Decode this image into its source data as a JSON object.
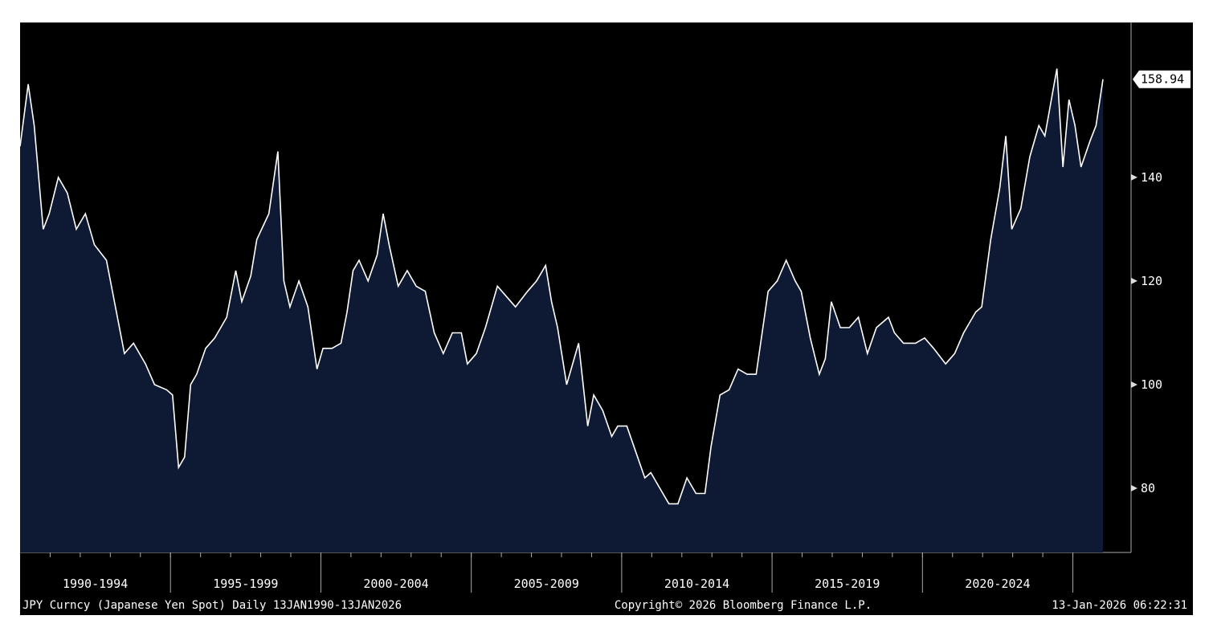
{
  "chart_data": {
    "type": "area",
    "subtitle": "JPY Curncy (Japanese Yen Spot) Daily 13JAN1990-13JAN2026",
    "copyright": "Copyright© 2026 Bloomberg Finance L.P.",
    "timestamp": "13-Jan-2026 06:22:31",
    "period_labels": [
      "1990-1994",
      "1995-1999",
      "2000-2004",
      "2005-2009",
      "2010-2014",
      "2015-2019",
      "2020-2024"
    ],
    "last_value_label": "158.94",
    "line_color": "#ffffff",
    "fill_color": "#0e1a33",
    "xlim": [
      1990.03,
      2026.03
    ],
    "ylim": [
      67.6,
      169.9
    ],
    "yticks": [
      80,
      100,
      120,
      140
    ],
    "x": [
      1990.03,
      1990.3,
      1990.5,
      1990.8,
      1991.0,
      1991.3,
      1991.6,
      1991.9,
      1992.2,
      1992.5,
      1992.9,
      1993.2,
      1993.5,
      1993.8,
      1994.2,
      1994.5,
      1994.9,
      1995.1,
      1995.3,
      1995.5,
      1995.7,
      1995.9,
      1996.2,
      1996.5,
      1996.9,
      1997.2,
      1997.4,
      1997.7,
      1997.9,
      1998.3,
      1998.6,
      1998.8,
      1999.0,
      1999.3,
      1999.6,
      1999.9,
      2000.1,
      2000.4,
      2000.7,
      2000.9,
      2001.1,
      2001.3,
      2001.6,
      2001.9,
      2002.1,
      2002.3,
      2002.6,
      2002.9,
      2003.2,
      2003.5,
      2003.8,
      2004.1,
      2004.4,
      2004.7,
      2004.9,
      2005.2,
      2005.5,
      2005.9,
      2006.2,
      2006.5,
      2006.9,
      2007.2,
      2007.5,
      2007.7,
      2007.9,
      2008.2,
      2008.6,
      2008.9,
      2009.1,
      2009.4,
      2009.7,
      2009.9,
      2010.2,
      2010.5,
      2010.8,
      2011.0,
      2011.3,
      2011.6,
      2011.9,
      2012.2,
      2012.5,
      2012.8,
      2013.0,
      2013.3,
      2013.6,
      2013.9,
      2014.2,
      2014.5,
      2014.9,
      2015.2,
      2015.5,
      2015.8,
      2016.0,
      2016.3,
      2016.6,
      2016.8,
      2017.0,
      2017.3,
      2017.6,
      2017.9,
      2018.2,
      2018.5,
      2018.9,
      2019.1,
      2019.4,
      2019.8,
      2020.1,
      2020.4,
      2020.8,
      2021.1,
      2021.4,
      2021.8,
      2022.0,
      2022.3,
      2022.6,
      2022.8,
      2023.0,
      2023.3,
      2023.6,
      2023.9,
      2024.1,
      2024.5,
      2024.7,
      2024.9,
      2025.1,
      2025.3,
      2025.6,
      2025.8,
      2026.03
    ],
    "values": [
      146,
      158,
      150,
      130,
      133,
      140,
      137,
      130,
      133,
      127,
      124,
      115,
      106,
      108,
      104,
      100,
      99,
      98,
      84,
      86,
      100,
      102,
      107,
      109,
      113,
      122,
      116,
      121,
      128,
      133,
      145,
      120,
      115,
      120,
      115,
      103,
      107,
      107,
      108,
      114,
      122,
      124,
      120,
      125,
      133,
      127,
      119,
      122,
      119,
      118,
      110,
      106,
      110,
      110,
      104,
      106,
      111,
      119,
      117,
      115,
      118,
      120,
      123,
      116,
      111,
      100,
      108,
      92,
      98,
      95,
      90,
      92,
      92,
      87,
      82,
      83,
      80,
      77,
      77,
      82,
      79,
      79,
      88,
      98,
      99,
      103,
      102,
      102,
      118,
      120,
      124,
      120,
      118,
      109,
      102,
      105,
      116,
      111,
      111,
      113,
      106,
      111,
      113,
      110,
      108,
      108,
      109,
      107,
      104,
      106,
      110,
      114,
      115,
      128,
      138,
      148,
      130,
      134,
      144,
      150,
      148,
      161,
      142,
      155,
      150,
      142,
      147,
      150,
      158.94
    ]
  }
}
